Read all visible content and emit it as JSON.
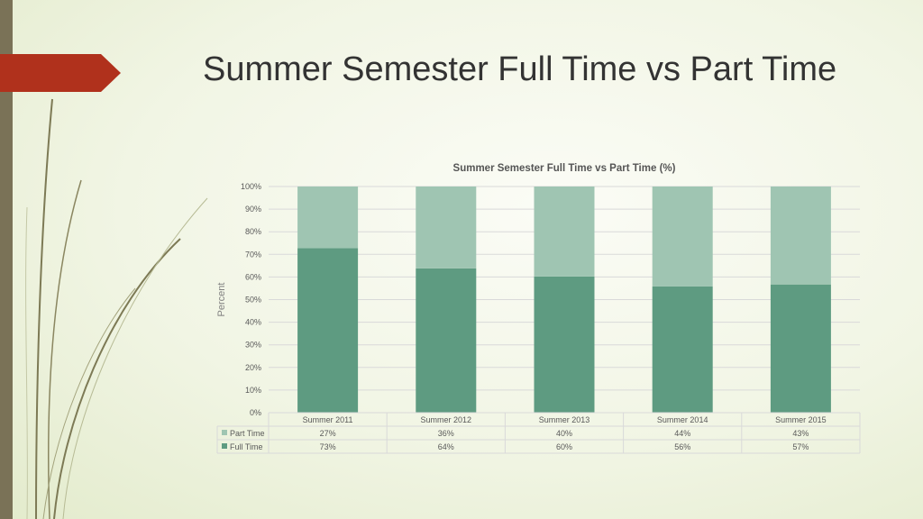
{
  "slide": {
    "title": "Summer Semester Full Time vs Part Time"
  },
  "chart_data": {
    "type": "bar",
    "stacked": true,
    "title": "Summer Semester Full Time vs Part Time (%)",
    "xlabel": "",
    "ylabel": "Percent",
    "ylim": [
      0,
      100
    ],
    "y_ticks": [
      "0%",
      "10%",
      "20%",
      "30%",
      "40%",
      "50%",
      "60%",
      "70%",
      "80%",
      "90%",
      "100%"
    ],
    "categories": [
      "Summer 2011",
      "Summer 2012",
      "Summer 2013",
      "Summer 2014",
      "Summer 2015"
    ],
    "series": [
      {
        "name": "Full Time",
        "values": [
          72.7,
          63.8,
          60.2,
          55.8,
          56.7
        ],
        "labels": [
          "73%",
          "64%",
          "60%",
          "56%",
          "57%"
        ],
        "color": "#5e9b81"
      },
      {
        "name": "Part Time",
        "values": [
          27.3,
          36.2,
          39.8,
          44.2,
          43.3
        ],
        "labels": [
          "27%",
          "36%",
          "40%",
          "44%",
          "43%"
        ],
        "color": "#9fc5b2"
      }
    ],
    "grid": true,
    "legend": "data-table"
  },
  "colors": {
    "accent": "#b0311c",
    "sidebar": "#7a7257",
    "gridline": "#d9d9d9"
  }
}
